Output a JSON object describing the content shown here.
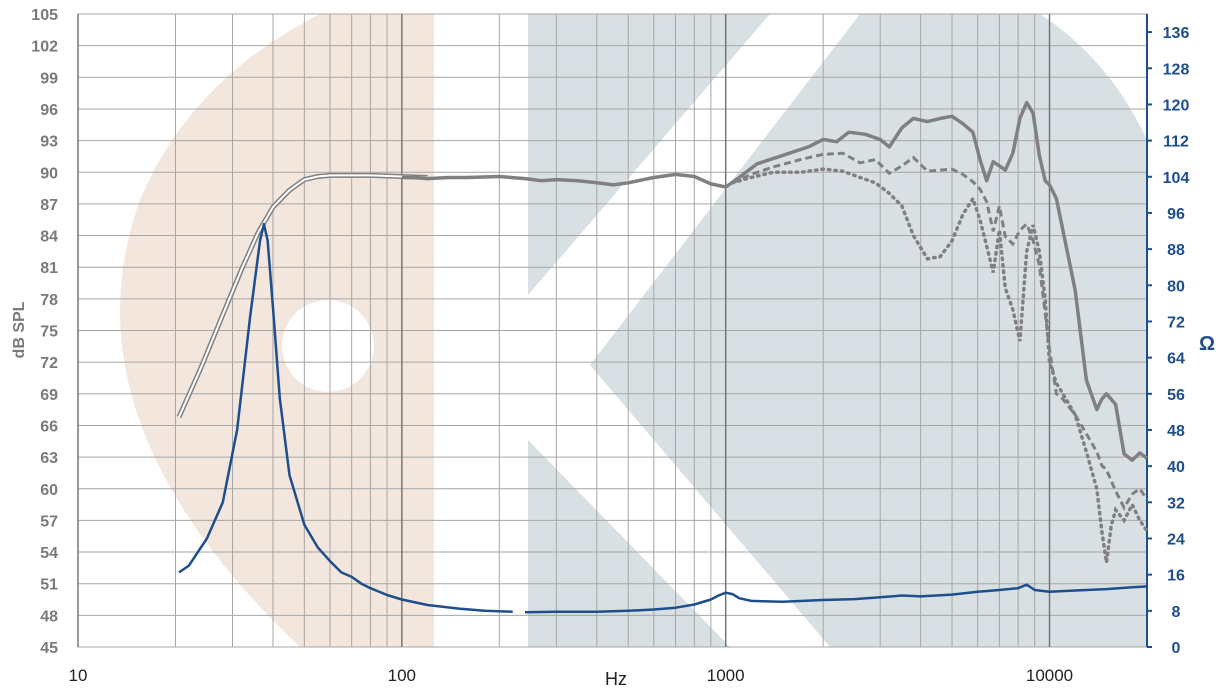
{
  "chart_data": {
    "type": "line",
    "xlabel": "Hz",
    "ylabel": "dB SPL",
    "y2label": "Ω",
    "x_scale": "log",
    "xlim": [
      10,
      20000
    ],
    "ylim": [
      45,
      105
    ],
    "y2lim": [
      0,
      140
    ],
    "x_ticks": [
      10,
      100,
      1000,
      10000
    ],
    "x_tick_labels": [
      "10",
      "100",
      "1000",
      "10000"
    ],
    "y_ticks": [
      45,
      48,
      51,
      54,
      57,
      60,
      63,
      66,
      69,
      72,
      75,
      78,
      81,
      84,
      87,
      90,
      93,
      96,
      99,
      102,
      105
    ],
    "y_tick_labels": [
      "45",
      "48",
      "51",
      "54",
      "57",
      "60",
      "63",
      "66",
      "69",
      "72",
      "75",
      "78",
      "81",
      "84",
      "87",
      "90",
      "93",
      "96",
      "99",
      "102",
      "105"
    ],
    "y2_ticks": [
      0,
      8,
      16,
      24,
      32,
      40,
      48,
      56,
      64,
      72,
      80,
      88,
      96,
      104,
      112,
      120,
      128,
      136
    ],
    "y2_tick_labels": [
      "0",
      "8",
      "16",
      "24",
      "32",
      "40",
      "48",
      "56",
      "64",
      "72",
      "80",
      "88",
      "96",
      "104",
      "112",
      "120",
      "128",
      "136"
    ],
    "grid": true,
    "colors": {
      "spl": "#808080",
      "impedance": "#1f4e8c",
      "grid": "#a6a6a6",
      "nearfield": "#8c8c8c",
      "band_left": "#f2e6dd",
      "band_mid": "#d9e0e4"
    },
    "series": [
      {
        "style": "double-line",
        "axis": "left",
        "x": [
          20.5,
          24,
          28,
          32,
          36,
          40,
          45,
          50,
          55,
          60,
          70,
          80,
          100,
          120
        ],
        "y": [
          66.8,
          71.5,
          76.5,
          80.8,
          84.3,
          86.7,
          88.3,
          89.3,
          89.6,
          89.7,
          89.7,
          89.7,
          89.6,
          89.5
        ]
      },
      {
        "style": "solid-thick",
        "axis": "left",
        "x": [
          100,
          110,
          120,
          140,
          160,
          200,
          240,
          270,
          300,
          350,
          400,
          450,
          500,
          600,
          700,
          800,
          900,
          1000,
          1100,
          1250,
          1500,
          1800,
          2000,
          2200,
          2400,
          2700,
          3000,
          3200,
          3500,
          3800,
          4200,
          4600,
          5000,
          5400,
          5800,
          6100,
          6400,
          6700,
          7000,
          7300,
          7700,
          8100,
          8500,
          8900,
          9300,
          9700,
          10000,
          10500,
          11000,
          12000,
          13000,
          14000,
          14500,
          15000,
          16000,
          17000,
          18000,
          19000,
          20000
        ],
        "y": [
          89.5,
          89.5,
          89.4,
          89.5,
          89.5,
          89.6,
          89.4,
          89.2,
          89.3,
          89.2,
          89.0,
          88.8,
          89.0,
          89.5,
          89.8,
          89.6,
          88.9,
          88.6,
          89.5,
          90.8,
          91.6,
          92.4,
          93.1,
          92.9,
          93.8,
          93.6,
          93.1,
          92.4,
          94.2,
          95.1,
          94.8,
          95.1,
          95.3,
          94.6,
          93.8,
          91.2,
          89.2,
          91.0,
          90.6,
          90.2,
          91.8,
          95.1,
          96.6,
          95.6,
          91.6,
          89.2,
          88.8,
          87.5,
          84.5,
          78.8,
          70.3,
          67.5,
          68.5,
          69.0,
          68.0,
          63.3,
          62.7,
          63.4,
          62.9
        ]
      },
      {
        "style": "dashed",
        "axis": "left",
        "x": [
          1050,
          1200,
          1400,
          1700,
          2000,
          2300,
          2600,
          2900,
          3200,
          3500,
          3800,
          4200,
          4600,
          5000,
          5400,
          5800,
          6100,
          6400,
          6700,
          7000,
          7300,
          7700,
          8100,
          8500,
          8900,
          9300,
          9700,
          10000,
          10500,
          11000,
          12000,
          13000,
          14000,
          14500,
          15000,
          16000,
          17000,
          18000,
          19000,
          20000
        ],
        "y": [
          89.0,
          89.8,
          90.5,
          91.2,
          91.7,
          91.8,
          90.9,
          91.2,
          89.9,
          90.6,
          91.4,
          90.1,
          90.2,
          90.3,
          89.8,
          89.1,
          88.4,
          87.2,
          84.4,
          86.8,
          83.9,
          83.2,
          84.5,
          85.1,
          83.5,
          81.2,
          76.6,
          73.2,
          69.0,
          68.5,
          67.0,
          65.2,
          63.5,
          62.2,
          61.8,
          59.8,
          58.2,
          59.5,
          60.0,
          59.0
        ]
      },
      {
        "style": "dotted",
        "axis": "left",
        "x": [
          1050,
          1200,
          1400,
          1700,
          2000,
          2300,
          2600,
          2900,
          3200,
          3500,
          3800,
          4200,
          4600,
          5000,
          5400,
          5800,
          6100,
          6400,
          6700,
          7000,
          7300,
          7700,
          8100,
          8500,
          8900,
          9300,
          9700,
          10000,
          10500,
          11000,
          12000,
          13000,
          14000,
          14500,
          15000,
          15500,
          16000,
          17000,
          18000,
          19000,
          20000
        ],
        "y": [
          89.0,
          89.5,
          90.0,
          90.0,
          90.3,
          90.1,
          89.5,
          89.0,
          88.0,
          86.8,
          84.0,
          81.8,
          82.0,
          83.5,
          86.0,
          87.5,
          85.5,
          83.0,
          80.5,
          84.5,
          79.0,
          77.0,
          74.0,
          82.5,
          85.0,
          82.5,
          78.0,
          72.0,
          70.0,
          69.0,
          67.0,
          63.5,
          60.0,
          56.0,
          53.0,
          56.5,
          58.0,
          57.0,
          58.5,
          57.0,
          56.0
        ]
      },
      {
        "style": "solid",
        "axis": "right",
        "x": [
          20.5,
          22,
          25,
          28,
          31,
          34,
          36.5,
          37.5,
          38.5,
          40,
          42,
          45,
          50,
          55,
          60,
          65,
          70,
          75,
          80,
          90,
          100,
          120,
          150,
          180,
          220
        ],
        "y": [
          16.5,
          18,
          24,
          32,
          48,
          73,
          90,
          93.5,
          90,
          75,
          55,
          38,
          27,
          22,
          19,
          16.5,
          15.5,
          14,
          13,
          11.5,
          10.5,
          9.3,
          8.5,
          8.0,
          7.8
        ]
      },
      {
        "style": "solid",
        "axis": "right",
        "x": [
          240,
          300,
          400,
          500,
          600,
          700,
          800,
          900,
          950,
          1000,
          1050,
          1100,
          1200,
          1500,
          2000,
          2500,
          3000,
          3500,
          4000,
          5000,
          6000,
          7000,
          8000,
          8500,
          9000,
          10000,
          12000,
          15000,
          18000,
          20000
        ],
        "y": [
          7.7,
          7.8,
          7.8,
          8.0,
          8.3,
          8.7,
          9.4,
          10.5,
          11.4,
          12.0,
          11.7,
          10.8,
          10.2,
          10.0,
          10.4,
          10.6,
          11.0,
          11.4,
          11.2,
          11.6,
          12.2,
          12.6,
          13.0,
          13.8,
          12.6,
          12.2,
          12.5,
          12.8,
          13.2,
          13.4
        ]
      }
    ]
  }
}
